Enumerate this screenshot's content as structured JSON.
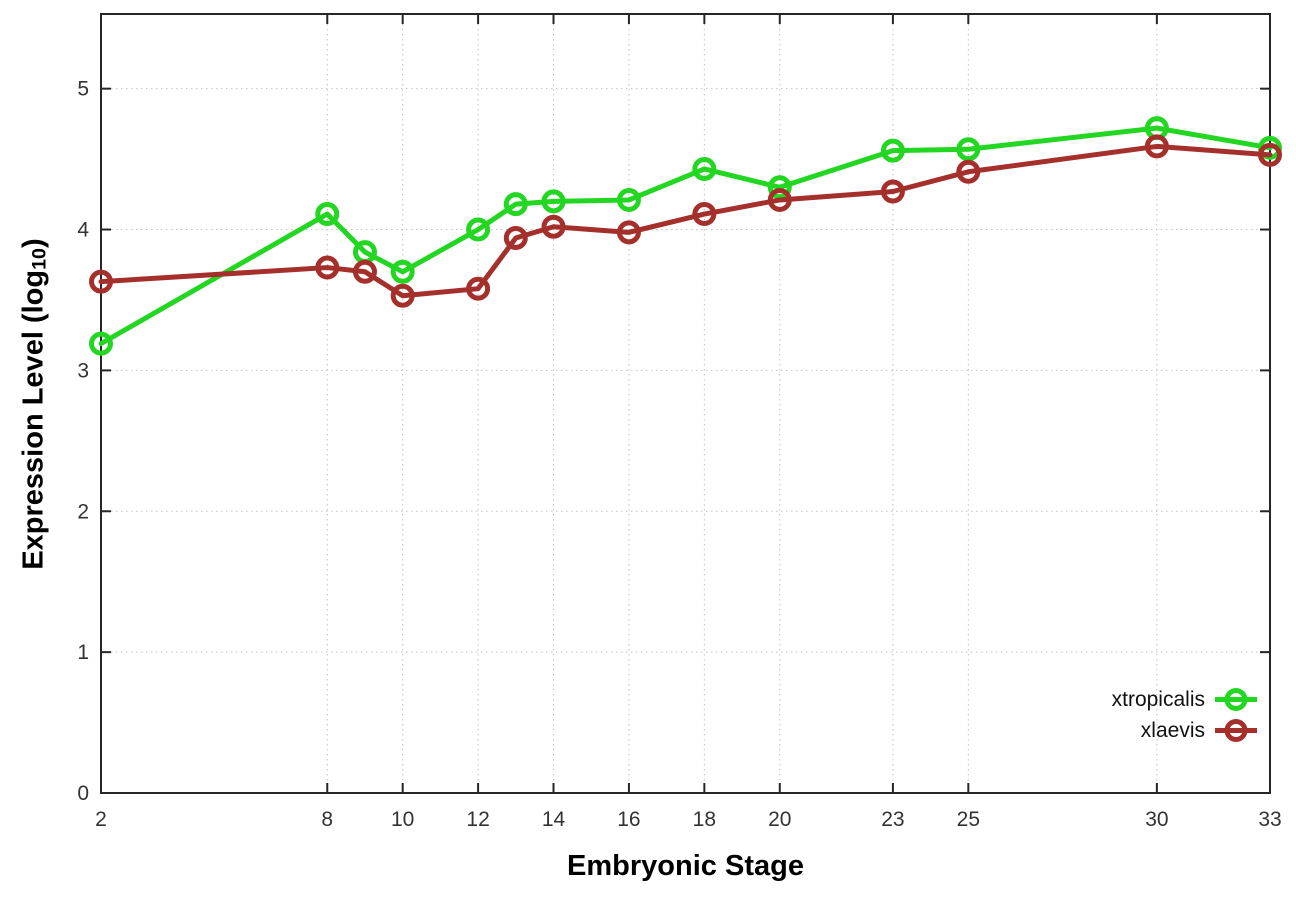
{
  "chart_data": {
    "type": "line",
    "title": "",
    "xlabel": "Embryonic Stage",
    "ylabel_main": "Expression Level (log",
    "ylabel_sub": "10",
    "ylabel_close": ")",
    "x": [
      2,
      8,
      9,
      10,
      12,
      13,
      14,
      16,
      18,
      20,
      23,
      25,
      30,
      33
    ],
    "xticks": [
      2,
      8,
      10,
      12,
      14,
      16,
      18,
      20,
      23,
      25,
      30,
      33
    ],
    "yticks": [
      0,
      1,
      2,
      3,
      4,
      5
    ],
    "xlim": [
      2,
      33
    ],
    "ylim": [
      0,
      5.53
    ],
    "grid": true,
    "legend_position": "inside bottom right",
    "marker": "open-circle",
    "series": [
      {
        "name": "xtropicalis",
        "color": "#22d622",
        "values": [
          3.19,
          4.11,
          3.84,
          3.7,
          4.0,
          4.18,
          4.2,
          4.21,
          4.43,
          4.3,
          4.56,
          4.57,
          4.72,
          4.58
        ]
      },
      {
        "name": "xlaevis",
        "color": "#a5302b",
        "values": [
          3.63,
          3.73,
          3.7,
          3.53,
          3.58,
          3.94,
          4.02,
          3.98,
          4.11,
          4.21,
          4.27,
          4.41,
          4.59,
          4.53
        ]
      }
    ]
  },
  "styles": {
    "background": "#ffffff",
    "axis_color": "#262626",
    "grid_color": "#c2c2c2",
    "tick_label_color": "#333333"
  }
}
